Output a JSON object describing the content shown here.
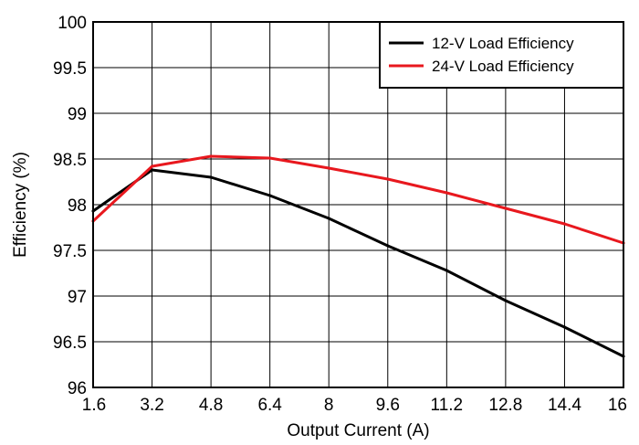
{
  "chart_data": {
    "type": "line",
    "xlabel": "Output Current (A)",
    "ylabel": "Efficiency (%)",
    "xlim": [
      1.6,
      16
    ],
    "ylim": [
      96,
      100
    ],
    "x_ticks": [
      "1.6",
      "3.2",
      "4.8",
      "6.4",
      "8",
      "9.6",
      "11.2",
      "12.8",
      "14.4",
      "16"
    ],
    "y_ticks": [
      "96",
      "96.5",
      "97",
      "97.5",
      "98",
      "98.5",
      "99",
      "99.5",
      "100"
    ],
    "grid": true,
    "legend_position": "top-right",
    "series": [
      {
        "name": "12-V Load Efficiency",
        "color": "#000000",
        "x": [
          1.6,
          3.2,
          4.8,
          6.4,
          8,
          9.6,
          11.2,
          12.8,
          14.4,
          16
        ],
        "y": [
          97.93,
          98.38,
          98.3,
          98.1,
          97.85,
          97.55,
          97.28,
          96.95,
          96.66,
          96.34
        ]
      },
      {
        "name": "24-V Load Efficiency",
        "color": "#e8181e",
        "x": [
          1.6,
          3.2,
          4.8,
          6.4,
          8,
          9.6,
          11.2,
          12.8,
          14.4,
          16
        ],
        "y": [
          97.82,
          98.42,
          98.53,
          98.51,
          98.4,
          98.28,
          98.13,
          97.96,
          97.79,
          97.58
        ]
      }
    ]
  }
}
